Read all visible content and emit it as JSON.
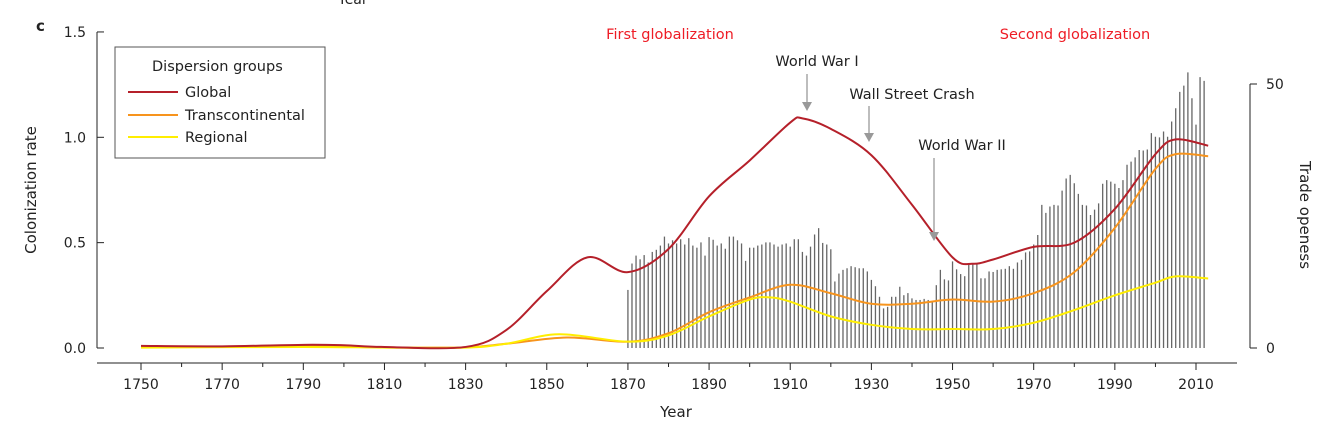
{
  "panel_label": "c",
  "top_cropped_text": "Year",
  "colors": {
    "global": "#b5202a",
    "transcontinental": "#f7941d",
    "regional": "#ffee00",
    "bars": "#666666",
    "annotation_red": "#ee1c25",
    "arrow": "#999999"
  },
  "chart_data": {
    "type": "line",
    "xlabel": "Year",
    "ylabel": "Colonization rate",
    "y2label": "Trade openess",
    "xlim": [
      1740,
      2020
    ],
    "ylim": [
      0,
      1.5
    ],
    "y2lim": [
      0,
      50
    ],
    "x_ticks": [
      1750,
      1770,
      1790,
      1810,
      1830,
      1850,
      1870,
      1890,
      1910,
      1930,
      1950,
      1970,
      1990,
      2010
    ],
    "y_ticks": [
      "0.0",
      "0.5",
      "1.0",
      "1.5"
    ],
    "y2_ticks": [
      "0",
      "50"
    ],
    "legend": {
      "title": "Dispersion groups",
      "placement": "top-left"
    },
    "series": [
      {
        "name": "Global",
        "color": "#b5202a",
        "x": [
          1750,
          1770,
          1790,
          1800,
          1810,
          1830,
          1840,
          1850,
          1860,
          1870,
          1880,
          1890,
          1900,
          1910,
          1913,
          1920,
          1930,
          1940,
          1950,
          1955,
          1960,
          1970,
          1980,
          1990,
          2000,
          2005,
          2013
        ],
        "y": [
          0.01,
          0.008,
          0.015,
          0.013,
          0.005,
          0.005,
          0.085,
          0.27,
          0.43,
          0.36,
          0.47,
          0.72,
          0.89,
          1.07,
          1.09,
          1.04,
          0.915,
          0.68,
          0.43,
          0.4,
          0.42,
          0.48,
          0.5,
          0.66,
          0.92,
          0.99,
          0.96
        ]
      },
      {
        "name": "Transcontinental",
        "color": "#f7941d",
        "x": [
          1750,
          1790,
          1810,
          1830,
          1840,
          1855,
          1870,
          1880,
          1890,
          1900,
          1910,
          1920,
          1930,
          1940,
          1950,
          1960,
          1970,
          1980,
          1990,
          2000,
          2005,
          2013
        ],
        "y": [
          0.005,
          0.008,
          0.003,
          0.003,
          0.02,
          0.05,
          0.03,
          0.07,
          0.17,
          0.24,
          0.3,
          0.26,
          0.21,
          0.21,
          0.23,
          0.22,
          0.26,
          0.36,
          0.57,
          0.85,
          0.92,
          0.91
        ]
      },
      {
        "name": "Regional",
        "color": "#ffee00",
        "x": [
          1750,
          1790,
          1810,
          1830,
          1840,
          1853,
          1870,
          1880,
          1890,
          1900,
          1905,
          1910,
          1920,
          1930,
          1940,
          1950,
          1960,
          1970,
          1980,
          1990,
          2000,
          2005,
          2013
        ],
        "y": [
          0.002,
          0.005,
          0.002,
          0.002,
          0.02,
          0.065,
          0.03,
          0.06,
          0.15,
          0.23,
          0.24,
          0.22,
          0.15,
          0.11,
          0.09,
          0.09,
          0.09,
          0.12,
          0.18,
          0.25,
          0.31,
          0.34,
          0.33
        ]
      }
    ],
    "bars": {
      "name": "Trade openess",
      "start_year": 1870,
      "values": [
        11.0,
        16.0,
        17.5,
        16.8,
        17.6,
        16.2,
        18.2,
        18.6,
        19.4,
        21.1,
        19.8,
        20.4,
        19.8,
        20.6,
        19.6,
        20.8,
        19.4,
        19.0,
        20.0,
        17.5,
        21.0,
        20.5,
        19.4,
        19.8,
        18.8,
        21.1,
        21.1,
        20.4,
        19.8,
        16.5,
        19.0,
        19.0,
        19.4,
        19.6,
        20.0,
        20.0,
        19.6,
        19.2,
        19.6,
        19.8,
        19.2,
        20.6,
        20.6,
        18.2,
        17.5,
        19.2,
        21.5,
        22.7,
        19.9,
        19.6,
        18.7,
        12.6,
        14.1,
        14.8,
        15.1,
        15.5,
        15.3,
        15.1,
        15.1,
        14.5,
        12.9,
        11.7,
        9.7,
        7.5,
        7.8,
        9.7,
        9.7,
        11.6,
        10.0,
        10.4,
        9.4,
        9.1,
        9.1,
        9.3,
        9.1,
        8.8,
        11.9,
        14.8,
        13.0,
        12.8,
        16.4,
        14.9,
        14.0,
        13.6,
        15.9,
        16.0,
        16.0,
        13.2,
        13.2,
        14.5,
        14.4,
        14.8,
        14.9,
        15.0,
        15.5,
        15.0,
        16.2,
        16.7,
        18.1,
        18.3,
        19.6,
        21.4,
        27.1,
        25.6,
        26.8,
        27.1,
        27.0,
        29.8,
        32.1,
        32.8,
        31.2,
        29.2,
        27.1,
        27.0,
        25.2,
        26.2,
        27.4,
        31.1,
        31.8,
        31.5,
        31.1,
        30.3,
        31.8,
        34.7,
        35.3,
        36.1,
        37.5,
        37.4,
        37.6,
        40.7,
        40.0,
        39.9,
        41.0,
        40.0,
        42.9,
        45.4,
        48.5,
        49.7,
        52.2,
        47.3,
        42.3,
        51.3,
        50.6
      ]
    },
    "annotations": [
      {
        "text": "First globalization",
        "year": 1860,
        "kind": "period"
      },
      {
        "text": "Second globalization",
        "year": 1983,
        "kind": "period"
      },
      {
        "text": "World War I",
        "year": 1914,
        "kind": "event"
      },
      {
        "text": "Wall Street Crash",
        "year": 1929,
        "kind": "event"
      },
      {
        "text": "World War II",
        "year": 1945,
        "kind": "event"
      }
    ]
  }
}
